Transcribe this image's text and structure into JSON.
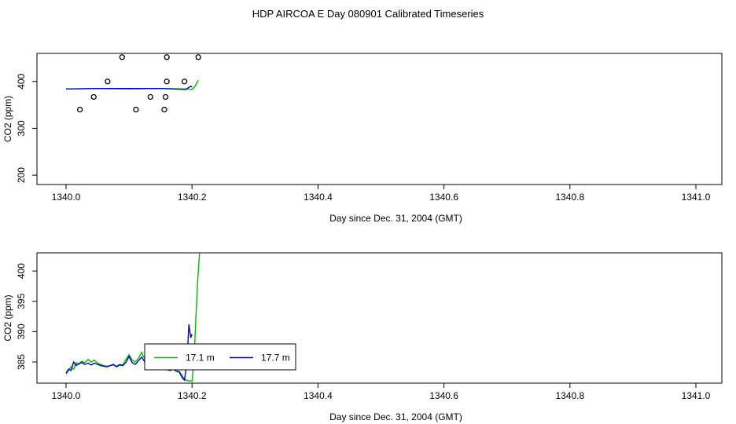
{
  "title": "HDP AIRCOA E  Day 080901  Calibrated Timeseries",
  "colors": {
    "green": "#00bb00",
    "blue": "#0000cc",
    "axis": "#000000"
  },
  "chart_data": [
    {
      "type": "line",
      "xlabel": "Day since Dec. 31, 2004 (GMT)",
      "ylabel": "CO2 (ppm)",
      "xlim": [
        1340.0,
        1341.0
      ],
      "ylim": [
        180,
        460
      ],
      "xticks": [
        "1340.0",
        "1340.2",
        "1340.4",
        "1340.6",
        "1340.8",
        "1341.0"
      ],
      "yticks": [
        "200",
        "300",
        "400"
      ],
      "series": [
        {
          "color": "green",
          "x": [
            1340.0,
            1340.05,
            1340.1,
            1340.15,
            1340.19,
            1340.2,
            1340.205,
            1340.21
          ],
          "y": [
            384,
            385,
            384,
            385,
            384,
            383,
            390,
            403
          ]
        },
        {
          "color": "blue",
          "x": [
            1340.0,
            1340.05,
            1340.1,
            1340.15,
            1340.19,
            1340.198,
            1340.2
          ],
          "y": [
            384,
            385,
            385,
            385,
            383,
            390,
            388
          ]
        }
      ],
      "points": {
        "marker": "open-circle",
        "x": [
          1340.022,
          1340.044,
          1340.066,
          1340.089,
          1340.111,
          1340.134,
          1340.156,
          1340.158,
          1340.16,
          1340.16,
          1340.188,
          1340.21
        ],
        "y": [
          340,
          367,
          400,
          452,
          340,
          367,
          340,
          367,
          400,
          452,
          400,
          452
        ]
      }
    },
    {
      "type": "line",
      "xlabel": "Day since Dec. 31, 2004 (GMT)",
      "ylabel": "CO2 (ppm)",
      "xlim": [
        1340.0,
        1341.0
      ],
      "ylim": [
        381.5,
        403
      ],
      "xticks": [
        "1340.0",
        "1340.2",
        "1340.4",
        "1340.6",
        "1340.8",
        "1341.0"
      ],
      "yticks": [
        "385",
        "390",
        "395",
        "400"
      ],
      "legend": {
        "position": "center-left",
        "entries": [
          {
            "label": "17.1 m",
            "color": "green"
          },
          {
            "label": "17.7 m",
            "color": "blue"
          }
        ]
      },
      "series": [
        {
          "name": "17.1 m",
          "color": "green",
          "x": [
            1340.0,
            1340.004,
            1340.008,
            1340.012,
            1340.016,
            1340.02,
            1340.025,
            1340.03,
            1340.035,
            1340.04,
            1340.045,
            1340.05,
            1340.055,
            1340.06,
            1340.065,
            1340.07,
            1340.075,
            1340.08,
            1340.085,
            1340.09,
            1340.095,
            1340.1,
            1340.105,
            1340.11,
            1340.115,
            1340.12,
            1340.125,
            1340.13,
            1340.135,
            1340.14,
            1340.145,
            1340.15,
            1340.155,
            1340.16,
            1340.165,
            1340.17,
            1340.175,
            1340.18,
            1340.185,
            1340.19,
            1340.195,
            1340.2,
            1340.203,
            1340.206,
            1340.209,
            1340.212
          ],
          "y": [
            383.0,
            383.6,
            384.2,
            383.8,
            384.9,
            384.6,
            385.1,
            384.9,
            385.4,
            385.0,
            385.3,
            384.8,
            384.6,
            384.4,
            384.3,
            384.4,
            384.5,
            384.3,
            384.6,
            384.5,
            385.4,
            386.2,
            385.3,
            385.0,
            385.6,
            386.6,
            385.4,
            384.9,
            384.8,
            384.6,
            384.3,
            384.0,
            383.8,
            383.7,
            383.6,
            383.8,
            383.5,
            383.4,
            382.6,
            382.0,
            381.9,
            381.8,
            385.0,
            392.0,
            398.5,
            403.0
          ]
        },
        {
          "name": "17.7 m",
          "color": "blue",
          "x": [
            1340.0,
            1340.004,
            1340.008,
            1340.012,
            1340.016,
            1340.02,
            1340.025,
            1340.03,
            1340.035,
            1340.04,
            1340.045,
            1340.05,
            1340.055,
            1340.06,
            1340.065,
            1340.07,
            1340.075,
            1340.08,
            1340.085,
            1340.09,
            1340.095,
            1340.1,
            1340.105,
            1340.11,
            1340.115,
            1340.12,
            1340.125,
            1340.13,
            1340.135,
            1340.14,
            1340.145,
            1340.15,
            1340.155,
            1340.16,
            1340.165,
            1340.17,
            1340.175,
            1340.18,
            1340.185,
            1340.188,
            1340.192,
            1340.195,
            1340.198,
            1340.2
          ],
          "y": [
            383.2,
            383.8,
            383.6,
            385.0,
            384.4,
            384.7,
            384.9,
            384.6,
            384.8,
            384.5,
            384.8,
            384.6,
            384.4,
            384.3,
            384.2,
            384.4,
            384.6,
            384.2,
            384.5,
            384.4,
            384.9,
            385.9,
            384.9,
            384.6,
            385.2,
            385.8,
            385.0,
            384.6,
            384.5,
            384.3,
            384.1,
            384.0,
            383.8,
            383.9,
            383.6,
            383.8,
            383.5,
            383.3,
            382.3,
            382.0,
            385.0,
            391.2,
            389.0,
            389.6
          ]
        }
      ]
    }
  ]
}
